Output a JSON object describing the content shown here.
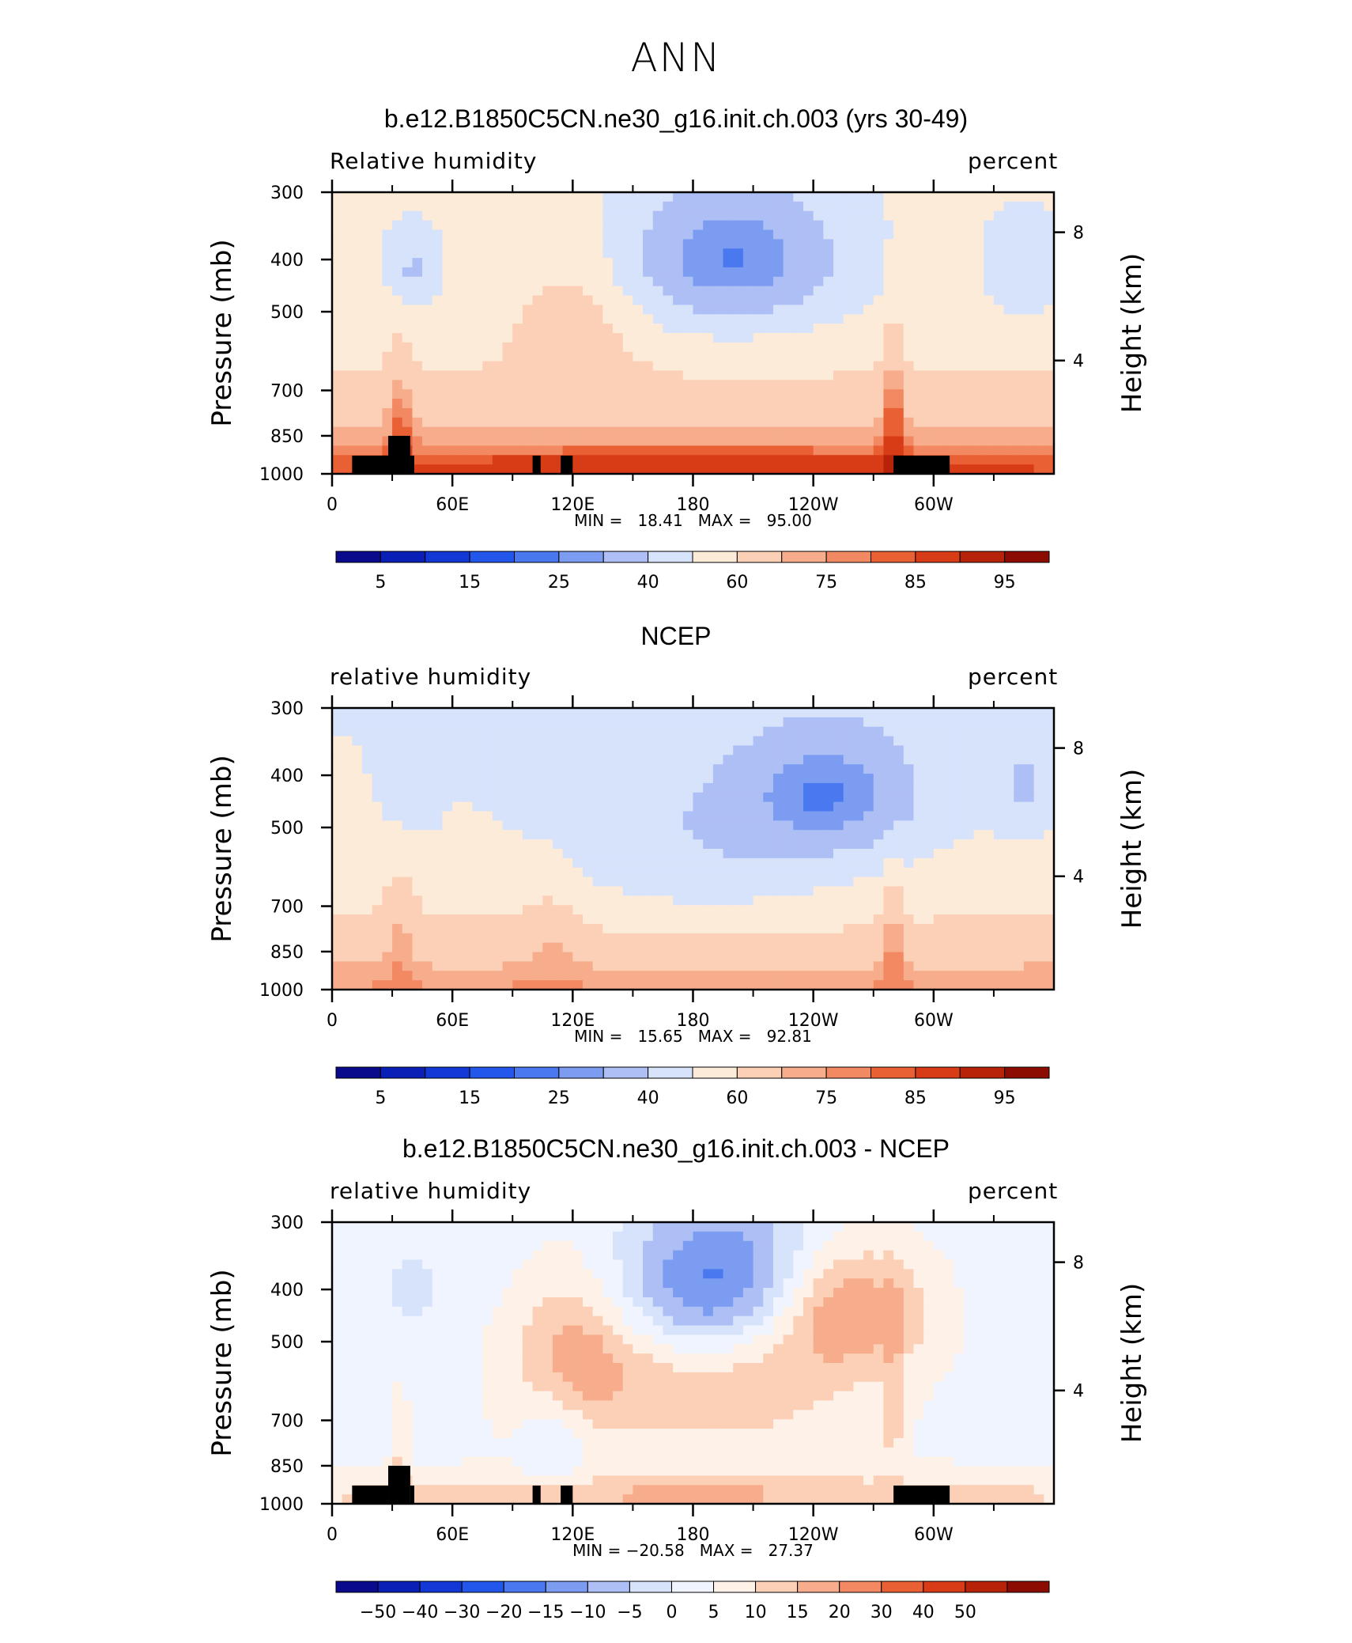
{
  "figure": {
    "season": "ANN"
  },
  "colors": {
    "rh_palette": [
      "#0a0a8c",
      "#0a1fb5",
      "#1238d6",
      "#2356ea",
      "#4a78ef",
      "#7c9cf2",
      "#aebff5",
      "#d7e2fb",
      "#fdebd9",
      "#fbd0b6",
      "#f7ad8c",
      "#f28962",
      "#ea6035",
      "#d83c17",
      "#b72308",
      "#8c0c02"
    ],
    "diff_palette": [
      "#0a0a8c",
      "#0a1fb5",
      "#1238d6",
      "#2356ea",
      "#4a78ef",
      "#7c9cf2",
      "#aebff5",
      "#d7e2fb",
      "#eff4fe",
      "#fef1e7",
      "#fbd0b6",
      "#f7ad8c",
      "#f28962",
      "#ea6035",
      "#d83c17",
      "#b72308",
      "#8c0c02"
    ],
    "topography": "#000000"
  },
  "panels": [
    {
      "title": "b.e12.B1850C5CN.ne30_g16.init.ch.003 (yrs 30-49)",
      "left_label": "Relative humidity",
      "right_label": "percent",
      "min_max": "MIN =   18.41   MAX =   95.00",
      "colorbar_labels": [
        "5",
        "15",
        "25",
        "40",
        "60",
        "75",
        "85",
        "95"
      ]
    },
    {
      "title": "NCEP",
      "left_label": "relative humidity",
      "right_label": "percent",
      "min_max": "MIN =   15.65   MAX =   92.81",
      "colorbar_labels": [
        "5",
        "15",
        "25",
        "40",
        "60",
        "75",
        "85",
        "95"
      ]
    },
    {
      "title": "b.e12.B1850C5CN.ne30_g16.init.ch.003 - NCEP",
      "left_label": "relative humidity",
      "right_label": "percent",
      "min_max": "MIN = −20.58   MAX =   27.37",
      "colorbar_labels": [
        "−50",
        "−40",
        "−30",
        "−20",
        "−15",
        "−10",
        "−5",
        "0",
        "5",
        "10",
        "15",
        "20",
        "30",
        "40",
        "50"
      ]
    }
  ],
  "chart_data": [
    {
      "type": "heatmap",
      "title": "b.e12.B1850C5CN.ne30_g16.init.ch.003 (yrs 30-49)",
      "variable": "Relative humidity",
      "units": "percent",
      "ylabel": "Pressure (mb)",
      "ylabel_right": "Height (km)",
      "x_ticks": [
        "0",
        "60E",
        "120E",
        "180",
        "120W",
        "60W"
      ],
      "y_ticks": [
        "300",
        "400",
        "500",
        "700",
        "850",
        "1000"
      ],
      "y_ticks_right": [
        "8",
        "4"
      ],
      "levels": [
        5,
        10,
        15,
        20,
        25,
        30,
        40,
        50,
        60,
        70,
        75,
        80,
        85,
        90,
        95
      ],
      "min": 18.41,
      "max": 95.0
    },
    {
      "type": "heatmap",
      "title": "NCEP",
      "variable": "relative humidity",
      "units": "percent",
      "ylabel": "Pressure (mb)",
      "ylabel_right": "Height (km)",
      "x_ticks": [
        "0",
        "60E",
        "120E",
        "180",
        "120W",
        "60W"
      ],
      "y_ticks": [
        "300",
        "400",
        "500",
        "700",
        "850",
        "1000"
      ],
      "y_ticks_right": [
        "8",
        "4"
      ],
      "levels": [
        5,
        10,
        15,
        20,
        25,
        30,
        40,
        50,
        60,
        70,
        75,
        80,
        85,
        90,
        95
      ],
      "min": 15.65,
      "max": 92.81
    },
    {
      "type": "heatmap",
      "title": "b.e12.B1850C5CN.ne30_g16.init.ch.003 - NCEP",
      "variable": "relative humidity",
      "units": "percent",
      "ylabel": "Pressure (mb)",
      "ylabel_right": "Height (km)",
      "x_ticks": [
        "0",
        "60E",
        "120E",
        "180",
        "120W",
        "60W"
      ],
      "y_ticks": [
        "300",
        "400",
        "500",
        "700",
        "850",
        "1000"
      ],
      "y_ticks_right": [
        "8",
        "4"
      ],
      "levels": [
        -50,
        -40,
        -30,
        -20,
        -15,
        -10,
        -5,
        0,
        5,
        10,
        15,
        20,
        30,
        40,
        50
      ],
      "min": -20.58,
      "max": 27.37
    }
  ]
}
